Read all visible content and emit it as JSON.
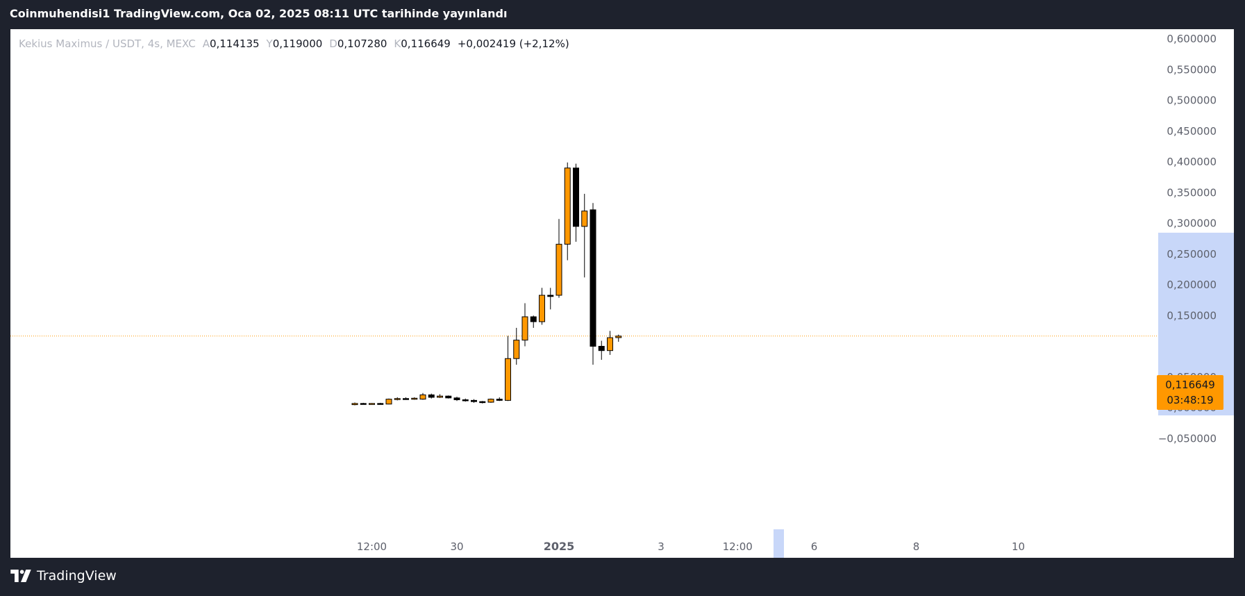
{
  "header": {
    "title": "Coinmuhendisi1 TradingView.com, Oca 02, 2025 08:11 UTC tarihinde yayınlandı"
  },
  "legend": {
    "symbol": "Kekius Maximus / USDT, 4s, MEXC",
    "open_label": "A",
    "open": "0,114135",
    "high_label": "Y",
    "high": "0,119000",
    "low_label": "D",
    "low": "0,107280",
    "close_label": "K",
    "close": "0,116649",
    "change": "+0,002419 (+2,12%)"
  },
  "last_price": {
    "value": "0,116649",
    "countdown": "03:48:19"
  },
  "footer": {
    "brand": "TradingView"
  },
  "colors": {
    "up": "#ff9800",
    "down": "#000000",
    "wick": "#000000",
    "last_line": "#ff9800",
    "highlight": "#c8d7f9",
    "frame": "#1e222d"
  },
  "chart_data": {
    "type": "candlestick",
    "y_ticks": [
      "0,600000",
      "0,550000",
      "0,500000",
      "0,450000",
      "0,400000",
      "0,350000",
      "0,300000",
      "0,250000",
      "0,200000",
      "0,150000",
      "0,050000",
      "0,000000",
      "−0,050000"
    ],
    "y_tick_values": [
      0.6,
      0.55,
      0.5,
      0.45,
      0.4,
      0.35,
      0.3,
      0.25,
      0.2,
      0.15,
      0.05,
      0.0,
      -0.05
    ],
    "ylim": [
      -0.06,
      0.62
    ],
    "x_ticks": [
      {
        "label": "12:00",
        "idx": 2,
        "bold": false
      },
      {
        "label": "30",
        "idx": 12,
        "bold": false
      },
      {
        "label": "2025",
        "idx": 24,
        "bold": true
      },
      {
        "label": "3",
        "idx": 36,
        "bold": false
      },
      {
        "label": "12:00",
        "idx": 45,
        "bold": false
      },
      {
        "label": "6",
        "idx": 54,
        "bold": false
      },
      {
        "label": "8",
        "idx": 66,
        "bold": false
      },
      {
        "label": "10",
        "idx": 78,
        "bold": false
      }
    ],
    "candles": [
      {
        "o": 0.005,
        "h": 0.0085,
        "l": 0.004,
        "c": 0.007
      },
      {
        "o": 0.007,
        "h": 0.008,
        "l": 0.006,
        "c": 0.0065
      },
      {
        "o": 0.0065,
        "h": 0.0075,
        "l": 0.0055,
        "c": 0.007
      },
      {
        "o": 0.007,
        "h": 0.008,
        "l": 0.006,
        "c": 0.0065
      },
      {
        "o": 0.006,
        "h": 0.015,
        "l": 0.0055,
        "c": 0.014
      },
      {
        "o": 0.014,
        "h": 0.017,
        "l": 0.012,
        "c": 0.015
      },
      {
        "o": 0.015,
        "h": 0.017,
        "l": 0.013,
        "c": 0.014
      },
      {
        "o": 0.014,
        "h": 0.017,
        "l": 0.013,
        "c": 0.0155
      },
      {
        "o": 0.014,
        "h": 0.024,
        "l": 0.013,
        "c": 0.021
      },
      {
        "o": 0.021,
        "h": 0.023,
        "l": 0.015,
        "c": 0.017
      },
      {
        "o": 0.017,
        "h": 0.022,
        "l": 0.016,
        "c": 0.019
      },
      {
        "o": 0.019,
        "h": 0.02,
        "l": 0.015,
        "c": 0.016
      },
      {
        "o": 0.016,
        "h": 0.018,
        "l": 0.011,
        "c": 0.013
      },
      {
        "o": 0.013,
        "h": 0.015,
        "l": 0.01,
        "c": 0.012
      },
      {
        "o": 0.012,
        "h": 0.014,
        "l": 0.008,
        "c": 0.01
      },
      {
        "o": 0.01,
        "h": 0.011,
        "l": 0.007,
        "c": 0.009
      },
      {
        "o": 0.009,
        "h": 0.015,
        "l": 0.008,
        "c": 0.014
      },
      {
        "o": 0.014,
        "h": 0.017,
        "l": 0.011,
        "c": 0.012
      },
      {
        "o": 0.012,
        "h": 0.117,
        "l": 0.011,
        "c": 0.08
      },
      {
        "o": 0.08,
        "h": 0.13,
        "l": 0.07,
        "c": 0.11
      },
      {
        "o": 0.11,
        "h": 0.17,
        "l": 0.1,
        "c": 0.148
      },
      {
        "o": 0.148,
        "h": 0.15,
        "l": 0.13,
        "c": 0.14
      },
      {
        "o": 0.14,
        "h": 0.195,
        "l": 0.135,
        "c": 0.183
      },
      {
        "o": 0.183,
        "h": 0.195,
        "l": 0.16,
        "c": 0.181
      },
      {
        "o": 0.183,
        "h": 0.307,
        "l": 0.179,
        "c": 0.266
      },
      {
        "o": 0.266,
        "h": 0.399,
        "l": 0.24,
        "c": 0.39
      },
      {
        "o": 0.39,
        "h": 0.397,
        "l": 0.27,
        "c": 0.295
      },
      {
        "o": 0.295,
        "h": 0.348,
        "l": 0.212,
        "c": 0.32
      },
      {
        "o": 0.322,
        "h": 0.333,
        "l": 0.07,
        "c": 0.1
      },
      {
        "o": 0.1,
        "h": 0.109,
        "l": 0.078,
        "c": 0.093
      },
      {
        "o": 0.093,
        "h": 0.125,
        "l": 0.086,
        "c": 0.114
      },
      {
        "o": 0.1141,
        "h": 0.119,
        "l": 0.1073,
        "c": 0.1166
      }
    ],
    "last_close": 0.116649
  }
}
